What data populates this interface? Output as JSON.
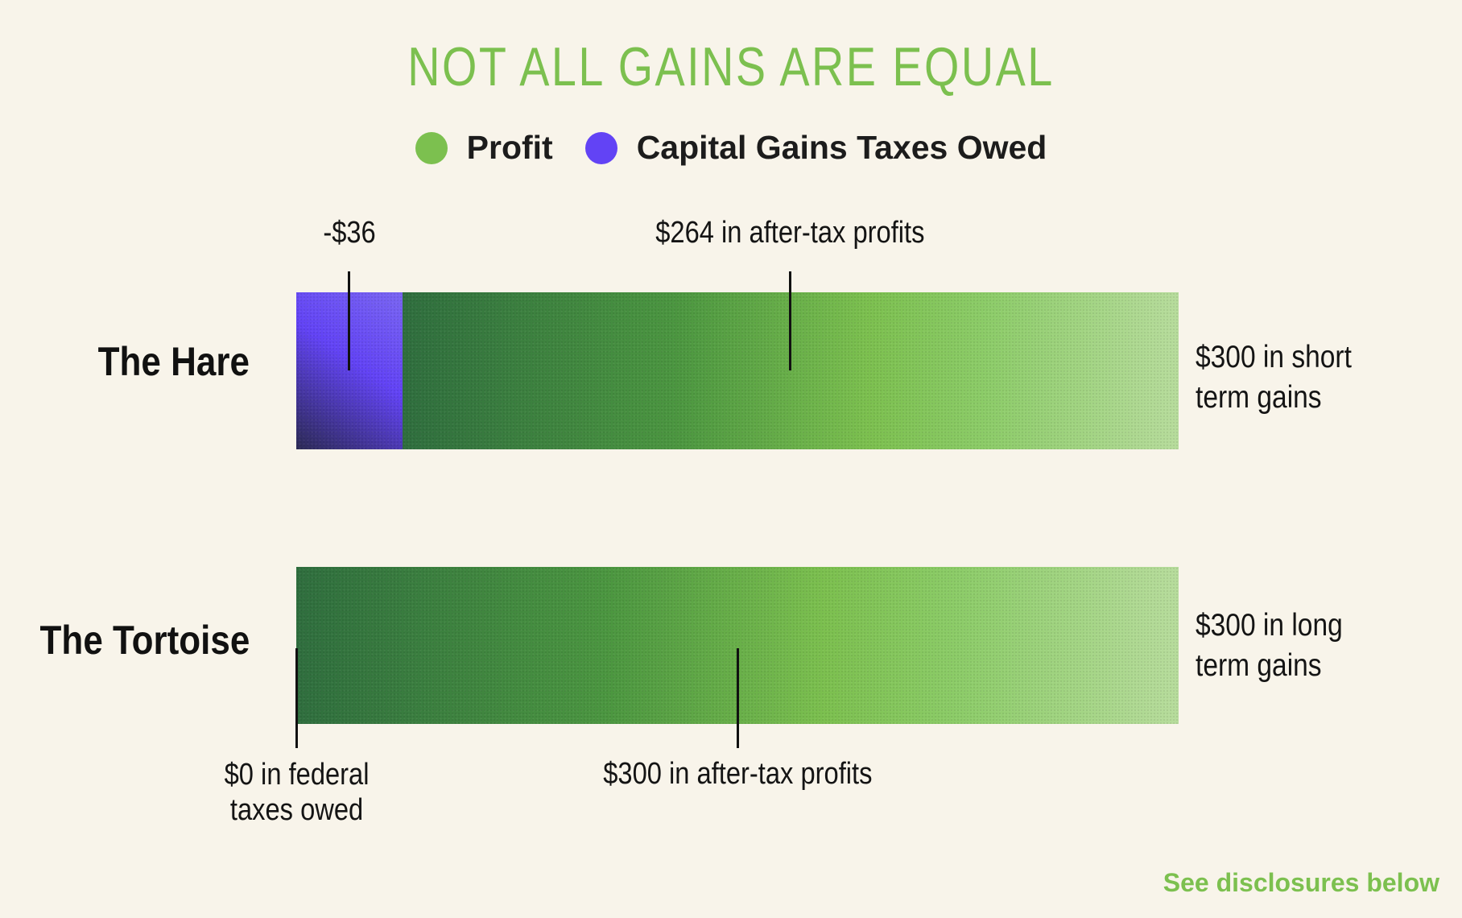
{
  "title": "NOT ALL GAINS ARE EQUAL",
  "legend": [
    {
      "label": "Profit",
      "color": "#7cc04f"
    },
    {
      "label": "Capital Gains Taxes Owed",
      "color": "#6243f5"
    }
  ],
  "footer": "See disclosures below",
  "chart_data": {
    "type": "bar",
    "orientation": "horizontal",
    "stacked": true,
    "categories": [
      "The Hare",
      "The Tortoise"
    ],
    "series": [
      {
        "name": "Capital Gains Taxes Owed",
        "values": [
          36,
          0
        ],
        "color": "#6243f5"
      },
      {
        "name": "Profit",
        "values": [
          264,
          300
        ],
        "color": "#7cc04f"
      }
    ],
    "xlim": [
      0,
      300
    ],
    "grid": false,
    "legend_position": "top-center",
    "annotations": {
      "hare_tax": "-$36",
      "hare_profit": "$264 in after-tax profits",
      "hare_total_line1": "$300 in short",
      "hare_total_line2": "term gains",
      "tortoise_tax_line1": "$0 in federal",
      "tortoise_tax_line2": "taxes owed",
      "tortoise_profit": "$300 in after-tax profits",
      "tortoise_total_line1": "$300 in long",
      "tortoise_total_line2": "term gains"
    }
  }
}
